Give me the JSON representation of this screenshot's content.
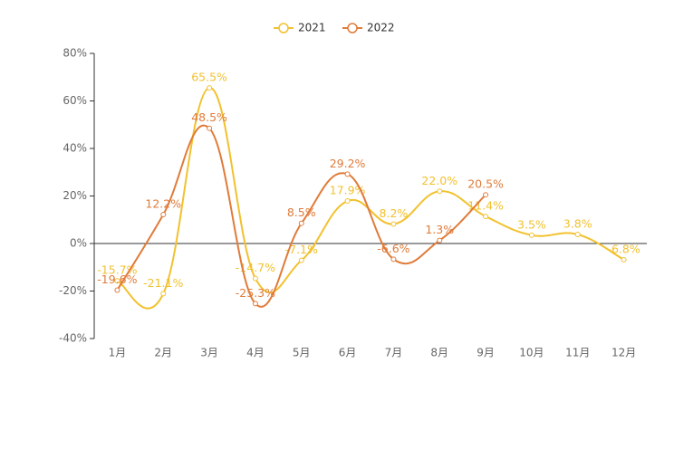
{
  "chart_data": {
    "type": "line",
    "categories": [
      "1月",
      "2月",
      "3月",
      "4月",
      "5月",
      "6月",
      "7月",
      "8月",
      "9月",
      "10月",
      "11月",
      "12月"
    ],
    "series": [
      {
        "name": "2021",
        "color": "#f2c12e",
        "values": [
          -15.7,
          -21.1,
          65.5,
          -14.7,
          -7.1,
          17.9,
          8.2,
          22.0,
          11.4,
          3.5,
          3.8,
          -6.8
        ],
        "value_labels": [
          "-15.7%",
          "-21.1%",
          "65.5%",
          "-14.7%",
          "-7.1%",
          "17.9%",
          "8.2%",
          "22.0%",
          "11.4%",
          "3.5%",
          "3.8%",
          "-6.8%"
        ]
      },
      {
        "name": "2022",
        "color": "#e07b39",
        "values": [
          -19.6,
          12.2,
          48.5,
          -25.3,
          8.5,
          29.2,
          -6.6,
          1.3,
          20.5,
          null,
          null,
          null
        ],
        "value_labels": [
          "-19.6%",
          "12.2%",
          "48.5%",
          "-25.3%",
          "8.5%",
          "29.2%",
          "-6.6%",
          "1.3%",
          "20.5%",
          null,
          null,
          null
        ]
      }
    ],
    "ylim": [
      -40,
      80
    ],
    "yticks": [
      {
        "value": -40,
        "label": "-40%"
      },
      {
        "value": -20,
        "label": "-20%"
      },
      {
        "value": 0,
        "label": "0%"
      },
      {
        "value": 20,
        "label": "20%"
      },
      {
        "value": 40,
        "label": "40%"
      },
      {
        "value": 60,
        "label": "60%"
      },
      {
        "value": 80,
        "label": "80%"
      }
    ],
    "legend": "top"
  }
}
